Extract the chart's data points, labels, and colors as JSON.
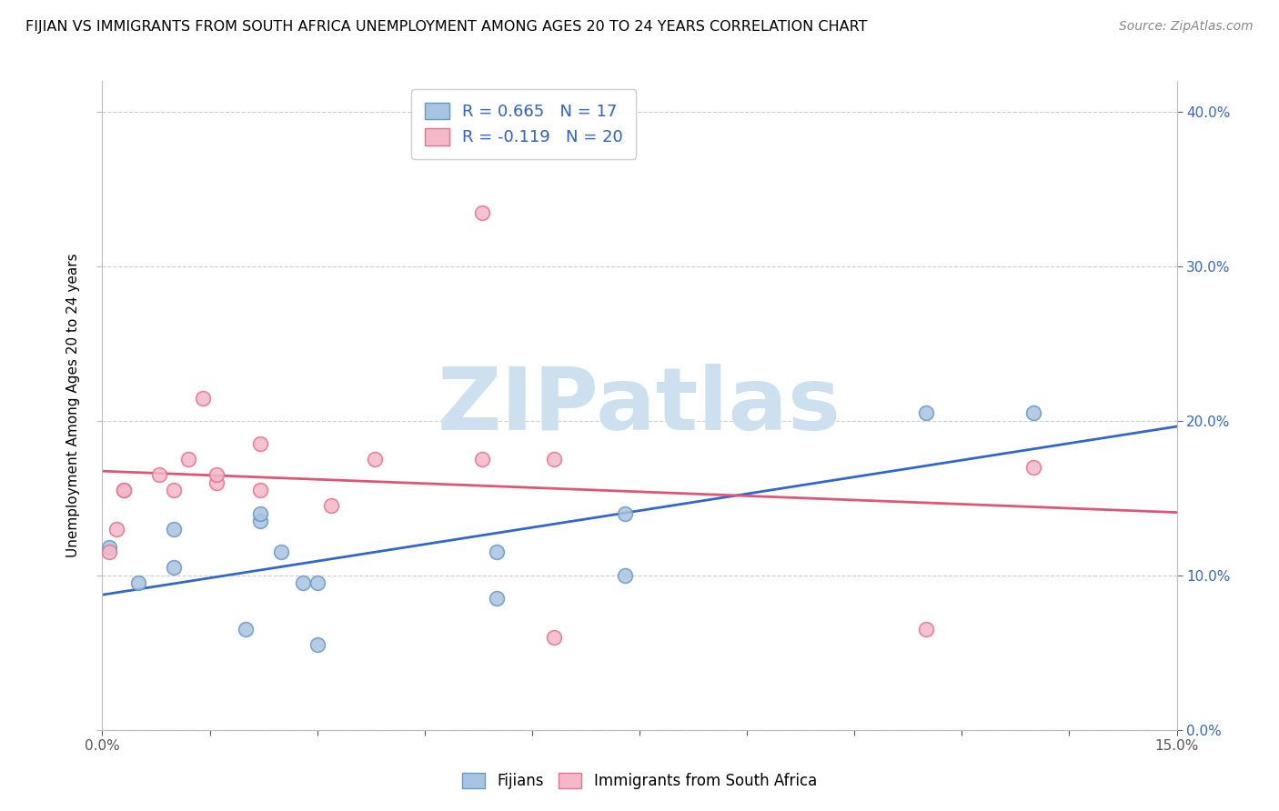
{
  "title": "FIJIAN VS IMMIGRANTS FROM SOUTH AFRICA UNEMPLOYMENT AMONG AGES 20 TO 24 YEARS CORRELATION CHART",
  "source": "Source: ZipAtlas.com",
  "ylabel": "Unemployment Among Ages 20 to 24 years",
  "xlim": [
    0.0,
    0.15
  ],
  "ylim": [
    0.0,
    0.42
  ],
  "xticks_shown": [
    0.0,
    0.15
  ],
  "xticks_grid": [
    0.0,
    0.015,
    0.03,
    0.045,
    0.06,
    0.075,
    0.09,
    0.105,
    0.12,
    0.135,
    0.15
  ],
  "yticks": [
    0.0,
    0.1,
    0.2,
    0.3,
    0.4
  ],
  "fijian_color": "#a8c4e0",
  "fijian_edge_color": "#6699cc",
  "sa_color": "#f4b8c8",
  "sa_edge_color": "#e87090",
  "fijian_line_color": "#3366cc",
  "sa_line_color": "#e05575",
  "fijian_R": 0.665,
  "fijian_N": 17,
  "sa_R": -0.119,
  "sa_N": 20,
  "legend_label_fijian": "Fijians",
  "legend_label_sa": "Immigrants from South Africa",
  "fijian_x": [
    0.001,
    0.005,
    0.01,
    0.01,
    0.02,
    0.022,
    0.022,
    0.025,
    0.028,
    0.03,
    0.03,
    0.055,
    0.055,
    0.073,
    0.073,
    0.115,
    0.13
  ],
  "fijian_y": [
    0.118,
    0.095,
    0.105,
    0.13,
    0.065,
    0.135,
    0.14,
    0.115,
    0.095,
    0.095,
    0.055,
    0.115,
    0.085,
    0.14,
    0.1,
    0.205,
    0.205
  ],
  "sa_x": [
    0.001,
    0.002,
    0.003,
    0.003,
    0.008,
    0.01,
    0.012,
    0.014,
    0.016,
    0.016,
    0.022,
    0.022,
    0.032,
    0.038,
    0.053,
    0.053,
    0.063,
    0.063,
    0.115,
    0.13
  ],
  "sa_y": [
    0.115,
    0.13,
    0.155,
    0.155,
    0.165,
    0.155,
    0.175,
    0.215,
    0.16,
    0.165,
    0.155,
    0.185,
    0.145,
    0.175,
    0.175,
    0.335,
    0.175,
    0.06,
    0.065,
    0.17
  ],
  "watermark_text": "ZIPatlas",
  "watermark_color": "#cde0f0",
  "marker_size": 130,
  "line_width": 2.0,
  "background_color": "#ffffff",
  "grid_color": "#cccccc",
  "right_yaxis_color": "#3366cc",
  "title_fontsize": 11.5,
  "source_fontsize": 10,
  "ylabel_fontsize": 11,
  "tick_fontsize": 11
}
